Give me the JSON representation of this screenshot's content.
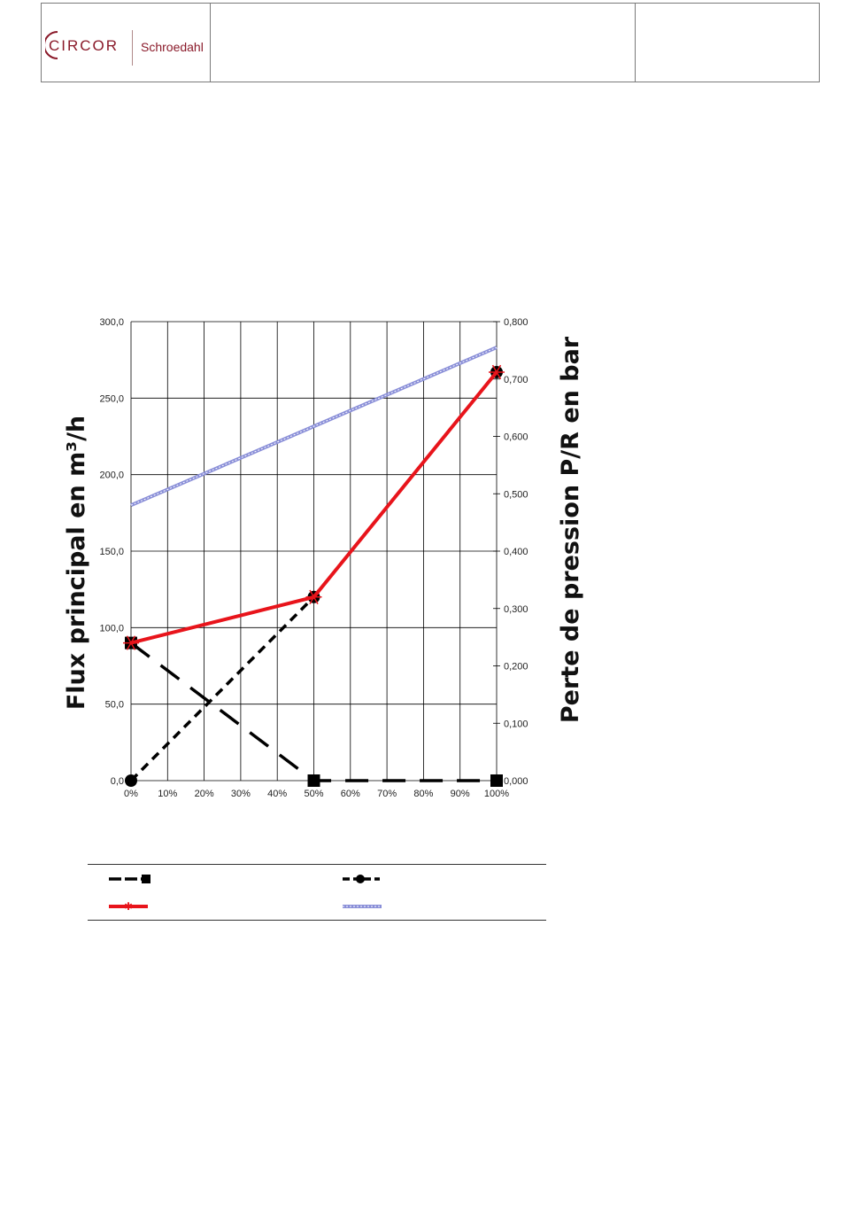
{
  "header": {
    "logo_brand": "CIRCOR",
    "logo_sub": "Schroedahl",
    "center_text": "",
    "right_text": ""
  },
  "chart_data": {
    "type": "line",
    "title": "",
    "x": [
      0,
      50,
      100
    ],
    "x_ticks": [
      "0%",
      "10%",
      "20%",
      "30%",
      "40%",
      "50%",
      "60%",
      "70%",
      "80%",
      "90%",
      "100%"
    ],
    "xlim": [
      0,
      100
    ],
    "ylabel": "Flux principal en m³/h",
    "ylim": [
      0,
      300
    ],
    "y_ticks": [
      "0,0",
      "50,0",
      "100,0",
      "150,0",
      "200,0",
      "250,0",
      "300,0"
    ],
    "y2label": "Perte de pression P/R en bar",
    "y2lim": [
      0,
      0.8
    ],
    "y2_ticks": [
      "0,000",
      "0,100",
      "0,200",
      "0,300",
      "0,400",
      "0,500",
      "0,600",
      "0,700",
      "0,800"
    ],
    "grid": true,
    "legend_position": "bottom",
    "series": [
      {
        "axis": "left",
        "x": [
          0,
          50,
          100
        ],
        "values": [
          90,
          0,
          0
        ],
        "color": "#000000",
        "style": "long-dash",
        "marker": "square"
      },
      {
        "axis": "left",
        "x": [
          0,
          50,
          100
        ],
        "values": [
          0,
          120,
          267
        ],
        "color": "#000000",
        "style": "dash",
        "marker": "circle"
      },
      {
        "axis": "left",
        "x": [
          0,
          50,
          100
        ],
        "values": [
          90,
          120,
          267
        ],
        "color": "#e8141b",
        "style": "solid",
        "marker": "star"
      },
      {
        "axis": "right",
        "x": [
          0,
          100
        ],
        "values": [
          0.48,
          0.755
        ],
        "color": "#8a8fd8",
        "style": "solid",
        "marker": "none"
      }
    ]
  }
}
